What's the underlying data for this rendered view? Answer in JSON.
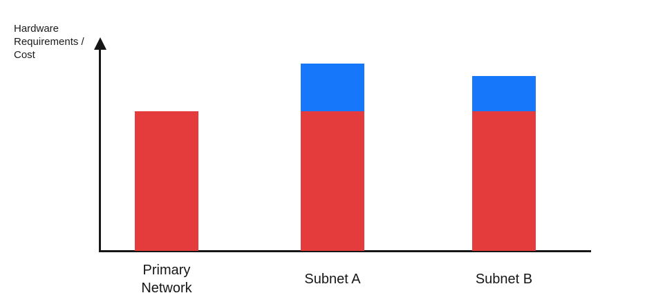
{
  "chart_data": {
    "type": "bar",
    "subtype": "stacked-vertical",
    "title": "",
    "xlabel": "",
    "ylabel": "Hardware\nRequirements /\nCost",
    "categories": [
      "Primary\nNetwork",
      "Subnet A",
      "Subnet B"
    ],
    "series": [
      {
        "name": "red",
        "color": "#E43C3C",
        "values": [
          1.0,
          1.0,
          1.0
        ]
      },
      {
        "name": "blue",
        "color": "#1677FB",
        "values": [
          0,
          0.34,
          0.25
        ]
      }
    ],
    "value_axis": {
      "labeled": false,
      "arrow": true,
      "range_units": [
        0,
        1.55
      ]
    },
    "grid": false,
    "legend": "none",
    "axis_color": "#161616"
  }
}
